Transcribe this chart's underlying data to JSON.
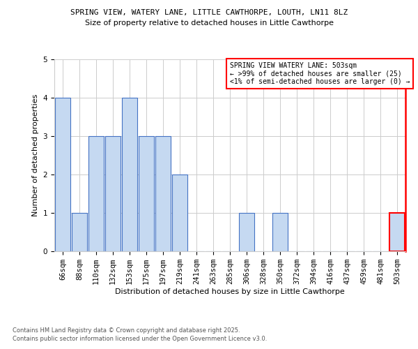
{
  "title1": "SPRING VIEW, WATERY LANE, LITTLE CAWTHORPE, LOUTH, LN11 8LZ",
  "title2": "Size of property relative to detached houses in Little Cawthorpe",
  "xlabel": "Distribution of detached houses by size in Little Cawthorpe",
  "ylabel": "Number of detached properties",
  "categories": [
    "66sqm",
    "88sqm",
    "110sqm",
    "132sqm",
    "153sqm",
    "175sqm",
    "197sqm",
    "219sqm",
    "241sqm",
    "263sqm",
    "285sqm",
    "306sqm",
    "328sqm",
    "350sqm",
    "372sqm",
    "394sqm",
    "416sqm",
    "437sqm",
    "459sqm",
    "481sqm",
    "503sqm"
  ],
  "values": [
    4,
    1,
    3,
    3,
    4,
    3,
    3,
    2,
    0,
    0,
    0,
    1,
    0,
    1,
    0,
    0,
    0,
    0,
    0,
    0,
    1
  ],
  "bar_color": "#c5d9f1",
  "bar_edge_color": "#4472c4",
  "highlight_index": 20,
  "highlight_color": "#c5d9f1",
  "highlight_edge_color": "#ff0000",
  "ylim": [
    0,
    5
  ],
  "yticks": [
    0,
    1,
    2,
    3,
    4,
    5
  ],
  "legend_box_color": "#ff0000",
  "legend_text_line1": "SPRING VIEW WATERY LANE: 503sqm",
  "legend_text_line2": "← >99% of detached houses are smaller (25)",
  "legend_text_line3": "<1% of semi-detached houses are larger (0) →",
  "footer1": "Contains HM Land Registry data © Crown copyright and database right 2025.",
  "footer2": "Contains public sector information licensed under the Open Government Licence v3.0.",
  "bg_color": "#ffffff",
  "grid_color": "#cccccc",
  "title1_fontsize": 8.0,
  "title2_fontsize": 8.0,
  "xlabel_fontsize": 8.0,
  "ylabel_fontsize": 8.0,
  "tick_fontsize": 7.5,
  "legend_fontsize": 7.0,
  "footer_fontsize": 6.0
}
